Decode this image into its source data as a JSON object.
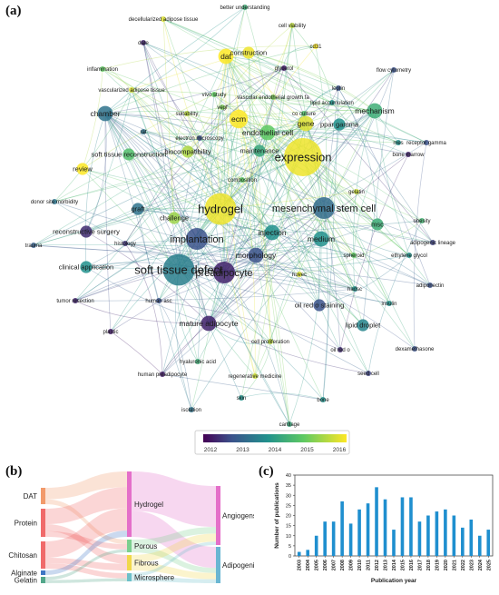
{
  "panels": {
    "a": "(a)",
    "b": "(b)",
    "c": "(c)"
  },
  "colors": {
    "c2012": "#46327e",
    "c2013": "#365c8d",
    "c2014": "#1fa187",
    "c2015": "#4ac16d",
    "c2016": "#fde725",
    "hydrogel": "#e46fc9",
    "porous": "#7ccf8e",
    "fibrous": "#f0d84a",
    "microsphere": "#6cc0c9",
    "angiogenesis": "#e46fc9",
    "adipogenic": "#6ab6d2",
    "dat": "#f29a6b",
    "protein": "#f06a6a",
    "chitosan": "#f06a6a",
    "alginate": "#3f76c4",
    "gelatin": "#52a78a",
    "bar": "#1f8fcf"
  },
  "chart_data": [
    {
      "type": "scatter",
      "subtype": "network",
      "colorbar": {
        "ticks": [
          "2012",
          "2013",
          "2014",
          "2015",
          "2016"
        ]
      },
      "nodes": [
        {
          "label": "better understanding",
          "year": 2014.5,
          "w": 1
        },
        {
          "label": "decellularized adipose tissue",
          "year": 2015.8,
          "w": 1
        },
        {
          "label": "cell viability",
          "year": 2015.6,
          "w": 1
        },
        {
          "label": "construction",
          "year": 2015.9,
          "w": 2
        },
        {
          "label": "dat",
          "year": 2016,
          "w": 3
        },
        {
          "label": "date",
          "year": 2012.4,
          "w": 1
        },
        {
          "label": "cd31",
          "year": 2016,
          "w": 1
        },
        {
          "label": "inflammation",
          "year": 2015,
          "w": 1
        },
        {
          "label": "glycerol",
          "year": 2012.3,
          "w": 1
        },
        {
          "label": "flow cytometry",
          "year": 2013,
          "w": 1
        },
        {
          "label": "vascularized adipose tissue",
          "year": 2015.8,
          "w": 1
        },
        {
          "label": "vegf",
          "year": 2015.2,
          "w": 1
        },
        {
          "label": "vivo study",
          "year": 2015,
          "w": 1
        },
        {
          "label": "vascular endothelial growth fa",
          "year": 2015.2,
          "w": 1
        },
        {
          "label": "leptin",
          "year": 2013,
          "w": 1
        },
        {
          "label": "chamber",
          "year": 2013.5,
          "w": 3
        },
        {
          "label": "suitability",
          "year": 2015.6,
          "w": 1
        },
        {
          "label": "ecm",
          "year": 2016,
          "w": 4
        },
        {
          "label": "lipid accumulation",
          "year": 2014,
          "w": 1
        },
        {
          "label": "mechanism",
          "year": 2014.5,
          "w": 3
        },
        {
          "label": "electron microscopy",
          "year": 2013,
          "w": 1
        },
        {
          "label": "co culture",
          "year": 2014.8,
          "w": 1
        },
        {
          "label": "endothelial cell",
          "year": 2015,
          "w": 3
        },
        {
          "label": "ppar gamma",
          "year": 2014,
          "w": 2
        },
        {
          "label": "mes",
          "year": 2014,
          "w": 1
        },
        {
          "label": "receptor gamma",
          "year": 2013,
          "w": 1
        },
        {
          "label": "rat",
          "year": 2013.5,
          "w": 1
        },
        {
          "label": "biocompatibility",
          "year": 2015.5,
          "w": 2
        },
        {
          "label": "maintenance",
          "year": 2014.4,
          "w": 2
        },
        {
          "label": "gene",
          "year": 2015.8,
          "w": 3
        },
        {
          "label": "soft tissue reconstruction",
          "year": 2014.8,
          "w": 2
        },
        {
          "label": "composition",
          "year": 2015,
          "w": 1
        },
        {
          "label": "expression",
          "year": 2015.9,
          "w": 10
        },
        {
          "label": "bone marrow",
          "year": 2012.4,
          "w": 1
        },
        {
          "label": "review",
          "year": 2016,
          "w": 2
        },
        {
          "label": "donor site morbidity",
          "year": 2013.5,
          "w": 1
        },
        {
          "label": "graft",
          "year": 2013.5,
          "w": 2
        },
        {
          "label": "challenge",
          "year": 2015.4,
          "w": 2
        },
        {
          "label": "hydrogel",
          "year": 2015.9,
          "w": 8
        },
        {
          "label": "mesenchymal stem cell",
          "year": 2013.4,
          "w": 5
        },
        {
          "label": "gelatin",
          "year": 2015.7,
          "w": 1
        },
        {
          "label": "obesity",
          "year": 2014.6,
          "w": 1
        },
        {
          "label": "reconstructive surgery",
          "year": 2012.5,
          "w": 2
        },
        {
          "label": "injection",
          "year": 2014,
          "w": 3
        },
        {
          "label": "msc",
          "year": 2014.5,
          "w": 2
        },
        {
          "label": "trauma",
          "year": 2013.2,
          "w": 1
        },
        {
          "label": "histology",
          "year": 2012.6,
          "w": 1
        },
        {
          "label": "implantation",
          "year": 2013,
          "w": 5
        },
        {
          "label": "medium",
          "year": 2014,
          "w": 3
        },
        {
          "label": "adipogenic lineage",
          "year": 2012.8,
          "w": 1
        },
        {
          "label": "spheroid",
          "year": 2015,
          "w": 1
        },
        {
          "label": "ethylene glycol",
          "year": 2014,
          "w": 1
        },
        {
          "label": "clinical application",
          "year": 2014,
          "w": 2
        },
        {
          "label": "soft tissue defect",
          "year": 2013.7,
          "w": 8
        },
        {
          "label": "morphology",
          "year": 2013,
          "w": 3
        },
        {
          "label": "huvec",
          "year": 2015.8,
          "w": 1
        },
        {
          "label": "adiponectin",
          "year": 2013,
          "w": 1
        },
        {
          "label": "hadsc",
          "year": 2014,
          "w": 1
        },
        {
          "label": "preadipocyte",
          "year": 2012.4,
          "w": 5
        },
        {
          "label": "tumor resection",
          "year": 2012.4,
          "w": 1
        },
        {
          "label": "human asc",
          "year": 2013,
          "w": 1
        },
        {
          "label": "oil red o staining",
          "year": 2013,
          "w": 2
        },
        {
          "label": "insulin",
          "year": 2014,
          "w": 1
        },
        {
          "label": "lipid droplet",
          "year": 2013.8,
          "w": 2
        },
        {
          "label": "plastic",
          "year": 2012.3,
          "w": 1
        },
        {
          "label": "mature adipocyte",
          "year": 2012.4,
          "w": 3
        },
        {
          "label": "cell proliferation",
          "year": 2015.6,
          "w": 1
        },
        {
          "label": "oil red o",
          "year": 2012.5,
          "w": 1
        },
        {
          "label": "dexamethasone",
          "year": 2013,
          "w": 1
        },
        {
          "label": "hyaluronic acid",
          "year": 2014.5,
          "w": 1
        },
        {
          "label": "human preadipocyte",
          "year": 2012.3,
          "w": 1
        },
        {
          "label": "regenerative medicine",
          "year": 2015.7,
          "w": 1
        },
        {
          "label": "seed cell",
          "year": 2012.8,
          "w": 1
        },
        {
          "label": "skin",
          "year": 2014,
          "w": 1
        },
        {
          "label": "bone",
          "year": 2014,
          "w": 1
        },
        {
          "label": "isolation",
          "year": 2013.5,
          "w": 1
        },
        {
          "label": "cartilage",
          "year": 2014.4,
          "w": 1
        }
      ]
    },
    {
      "type": "sankey",
      "sources": [
        "DAT",
        "Protein",
        "Chitosan",
        "Alginate",
        "Gelatin"
      ],
      "middle": [
        "Hydrogel",
        "Porous",
        "Fibrous",
        "Microsphere"
      ],
      "targets": [
        "Angiogensis",
        "Adipogenic"
      ]
    },
    {
      "type": "bar",
      "title": "",
      "xlabel": "Publication year",
      "ylabel": "Number of publications",
      "ylim": [
        0,
        40
      ],
      "yticks": [
        0,
        5,
        10,
        15,
        20,
        25,
        30,
        35,
        40
      ],
      "categories": [
        "2003",
        "2004",
        "2005",
        "2006",
        "2007",
        "2008",
        "2009",
        "2010",
        "2011",
        "2012",
        "2013",
        "2014",
        "2015",
        "2016",
        "2017",
        "2018",
        "2019",
        "2020",
        "2021",
        "2022",
        "2023",
        "2024",
        "2025"
      ],
      "values": [
        2,
        3,
        10,
        17,
        17,
        27,
        16,
        23,
        26,
        34,
        28,
        13,
        29,
        29,
        17,
        20,
        22,
        23,
        20,
        14,
        18,
        10,
        13
      ]
    }
  ]
}
